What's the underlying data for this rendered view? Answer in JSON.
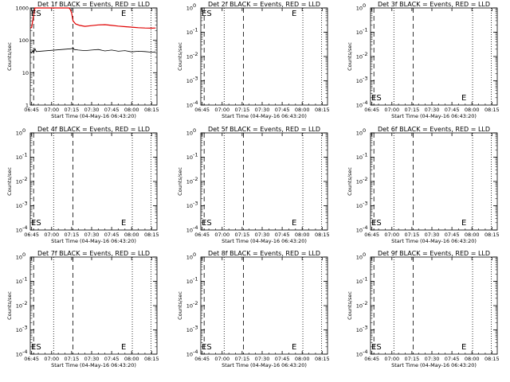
{
  "start_time_label": "Start Time (04-May-16 06:43:20)",
  "ylabel": "Counts/sec",
  "x_ticks": [
    "06:45",
    "07:00",
    "07:15",
    "07:30",
    "07:45",
    "08:00",
    "08:15"
  ],
  "x_range_minutes": [
    -1.0,
    94.0
  ],
  "x_tick_minutes": [
    0,
    15,
    30,
    45,
    60,
    75,
    90
  ],
  "dashed_lines_minutes": [
    1.5,
    31.0
  ],
  "dotted_lines_minutes": [
    16.5,
    75.5,
    89.5
  ],
  "markers": {
    "es_top": "ES",
    "es_bottom": "ES",
    "e": "E"
  },
  "colors": {
    "events": "#000000",
    "lld": "#e00000"
  },
  "chart_data": [
    {
      "type": "line",
      "title": "Det 1f BLACK = Events, RED = LLD",
      "scale": "log",
      "ylim": [
        1,
        1000
      ],
      "y_ticks": [
        "1",
        "10",
        "100",
        "1000"
      ],
      "y_tick_values": [
        1,
        10,
        100,
        1000
      ],
      "markers": [
        "es_top",
        "e"
      ],
      "series": [
        {
          "role": "lld",
          "x": [
            -1,
            0,
            1.5,
            2.5,
            3.5,
            10,
            20,
            28,
            29,
            30,
            31,
            33,
            36,
            40,
            45,
            50,
            55,
            60,
            65,
            70,
            75,
            80,
            85,
            90,
            93
          ],
          "values": [
            240,
            250,
            600,
            1000,
            1000,
            1000,
            1000,
            1000,
            900,
            700,
            400,
            320,
            290,
            270,
            285,
            300,
            305,
            290,
            275,
            265,
            255,
            245,
            240,
            238,
            240
          ]
        },
        {
          "role": "events",
          "x": [
            -1,
            0,
            1,
            1.5,
            2.5,
            3.5,
            30,
            31,
            32,
            35,
            40,
            45,
            50,
            55,
            60,
            65,
            70,
            75,
            80,
            85,
            90,
            93
          ],
          "values": [
            45,
            42,
            48,
            40,
            55,
            45,
            55,
            60,
            52,
            50,
            48,
            50,
            52,
            47,
            50,
            46,
            48,
            44,
            46,
            45,
            43,
            44
          ]
        }
      ]
    },
    {
      "type": "line",
      "title": "Det 2f BLACK = Events, RED = LLD",
      "scale": "log",
      "y_ticks": [
        "10",
        "10",
        "10",
        "10",
        "10"
      ],
      "y_tick_exponents": [
        "-4",
        "-3",
        "-2",
        "-1",
        "0"
      ],
      "markers": [
        "es_top",
        "e"
      ],
      "series": []
    },
    {
      "type": "line",
      "title": "Det 3f BLACK = Events, RED = LLD",
      "scale": "log",
      "y_ticks": [
        "10",
        "10",
        "10",
        "10",
        "10"
      ],
      "y_tick_exponents": [
        "-4",
        "-3",
        "-2",
        "-1",
        "0"
      ],
      "markers": [
        "es_bottom",
        "e"
      ],
      "series": []
    },
    {
      "type": "line",
      "title": "Det 4f BLACK = Events, RED = LLD",
      "scale": "log",
      "y_ticks": [
        "10",
        "10",
        "10",
        "10",
        "10"
      ],
      "y_tick_exponents": [
        "-4",
        "-3",
        "-2",
        "-1",
        "0"
      ],
      "markers": [
        "es_bottom",
        "e"
      ],
      "series": []
    },
    {
      "type": "line",
      "title": "Det 5f BLACK = Events, RED = LLD",
      "scale": "log",
      "y_ticks": [
        "10",
        "10",
        "10",
        "10",
        "10"
      ],
      "y_tick_exponents": [
        "-4",
        "-3",
        "-2",
        "-1",
        "0"
      ],
      "markers": [
        "es_bottom",
        "e"
      ],
      "series": []
    },
    {
      "type": "line",
      "title": "Det 6f BLACK = Events, RED = LLD",
      "scale": "log",
      "y_ticks": [
        "10",
        "10",
        "10",
        "10",
        "10"
      ],
      "y_tick_exponents": [
        "-4",
        "-3",
        "-2",
        "-1",
        "0"
      ],
      "markers": [
        "es_bottom",
        "e"
      ],
      "series": []
    },
    {
      "type": "line",
      "title": "Det 7f BLACK = Events, RED = LLD",
      "scale": "log",
      "y_ticks": [
        "10",
        "10",
        "10",
        "10",
        "10"
      ],
      "y_tick_exponents": [
        "-4",
        "-3",
        "-2",
        "-1",
        "0"
      ],
      "markers": [
        "es_bottom",
        "e"
      ],
      "series": []
    },
    {
      "type": "line",
      "title": "Det 8f BLACK = Events, RED = LLD",
      "scale": "log",
      "y_ticks": [
        "10",
        "10",
        "10",
        "10",
        "10"
      ],
      "y_tick_exponents": [
        "-4",
        "-3",
        "-2",
        "-1",
        "0"
      ],
      "markers": [
        "es_bottom",
        "e"
      ],
      "series": []
    },
    {
      "type": "line",
      "title": "Det 9f BLACK = Events, RED = LLD",
      "scale": "log",
      "y_ticks": [
        "10",
        "10",
        "10",
        "10",
        "10"
      ],
      "y_tick_exponents": [
        "-4",
        "-3",
        "-2",
        "-1",
        "0"
      ],
      "markers": [
        "es_bottom",
        "e"
      ],
      "series": []
    }
  ]
}
